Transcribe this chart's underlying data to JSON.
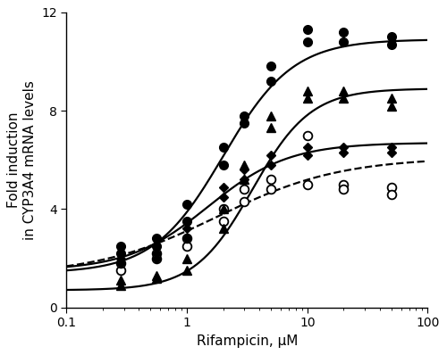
{
  "title": "",
  "xlabel": "Rifampicin, μM",
  "ylabel": "Fold induction\nin CYP3A4 mRNA levels",
  "xlim": [
    0.1,
    100
  ],
  "ylim": [
    0,
    12
  ],
  "yticks": [
    0,
    4,
    8,
    12
  ],
  "background_color": "#ffffff",
  "hep_open_circles": [
    [
      0.28,
      1.5
    ],
    [
      0.28,
      1.8
    ],
    [
      0.56,
      2.0
    ],
    [
      0.56,
      2.2
    ],
    [
      1.0,
      2.5
    ],
    [
      1.0,
      2.8
    ],
    [
      2.0,
      3.5
    ],
    [
      2.0,
      4.0
    ],
    [
      3.0,
      4.3
    ],
    [
      3.0,
      4.8
    ],
    [
      5.0,
      4.8
    ],
    [
      5.0,
      5.2
    ],
    [
      10.0,
      5.0
    ],
    [
      10.0,
      7.0
    ],
    [
      20.0,
      5.0
    ],
    [
      20.0,
      4.8
    ],
    [
      50.0,
      4.9
    ],
    [
      50.0,
      4.6
    ]
  ],
  "huliver_A1_closed_circles": [
    [
      0.28,
      2.2
    ],
    [
      0.28,
      2.5
    ],
    [
      0.56,
      2.5
    ],
    [
      0.56,
      2.8
    ],
    [
      1.0,
      3.5
    ],
    [
      1.0,
      4.2
    ],
    [
      2.0,
      5.8
    ],
    [
      2.0,
      6.5
    ],
    [
      3.0,
      7.5
    ],
    [
      3.0,
      7.8
    ],
    [
      5.0,
      9.2
    ],
    [
      5.0,
      9.8
    ],
    [
      10.0,
      10.8
    ],
    [
      10.0,
      11.3
    ],
    [
      20.0,
      10.8
    ],
    [
      20.0,
      11.2
    ],
    [
      50.0,
      10.7
    ],
    [
      50.0,
      11.0
    ]
  ],
  "huliver_A2_closed_triangles": [
    [
      0.28,
      1.1
    ],
    [
      0.28,
      0.9
    ],
    [
      0.56,
      1.3
    ],
    [
      0.56,
      1.2
    ],
    [
      1.0,
      1.5
    ],
    [
      1.0,
      2.0
    ],
    [
      2.0,
      3.2
    ],
    [
      2.0,
      4.0
    ],
    [
      3.0,
      5.2
    ],
    [
      3.0,
      5.8
    ],
    [
      5.0,
      7.3
    ],
    [
      5.0,
      7.8
    ],
    [
      10.0,
      8.5
    ],
    [
      10.0,
      8.8
    ],
    [
      20.0,
      8.8
    ],
    [
      20.0,
      8.5
    ],
    [
      50.0,
      8.5
    ],
    [
      50.0,
      8.2
    ]
  ],
  "huliver_A4_closed_diamonds": [
    [
      0.28,
      1.8
    ],
    [
      0.28,
      2.0
    ],
    [
      0.56,
      2.0
    ],
    [
      0.56,
      2.2
    ],
    [
      1.0,
      2.8
    ],
    [
      1.0,
      3.2
    ],
    [
      2.0,
      4.5
    ],
    [
      2.0,
      4.9
    ],
    [
      3.0,
      5.2
    ],
    [
      3.0,
      5.6
    ],
    [
      5.0,
      5.8
    ],
    [
      5.0,
      6.2
    ],
    [
      10.0,
      6.2
    ],
    [
      10.0,
      6.5
    ],
    [
      20.0,
      6.3
    ],
    [
      20.0,
      6.5
    ],
    [
      50.0,
      6.3
    ],
    [
      50.0,
      6.5
    ]
  ],
  "curve_hep": {
    "Emax": 4.8,
    "EC50": 1.8,
    "n": 0.85,
    "E0": 1.3,
    "style": "dashed"
  },
  "curve_A1": {
    "Emax": 9.5,
    "EC50": 2.0,
    "n": 1.5,
    "E0": 1.4,
    "style": "solid"
  },
  "curve_A2": {
    "Emax": 8.2,
    "EC50": 3.5,
    "n": 1.8,
    "E0": 0.7,
    "style": "solid"
  },
  "curve_A4": {
    "Emax": 5.2,
    "EC50": 1.5,
    "n": 1.3,
    "E0": 1.5,
    "style": "solid"
  },
  "marker_size": 7,
  "line_width": 1.6,
  "font_size_label": 11,
  "font_size_tick": 10
}
